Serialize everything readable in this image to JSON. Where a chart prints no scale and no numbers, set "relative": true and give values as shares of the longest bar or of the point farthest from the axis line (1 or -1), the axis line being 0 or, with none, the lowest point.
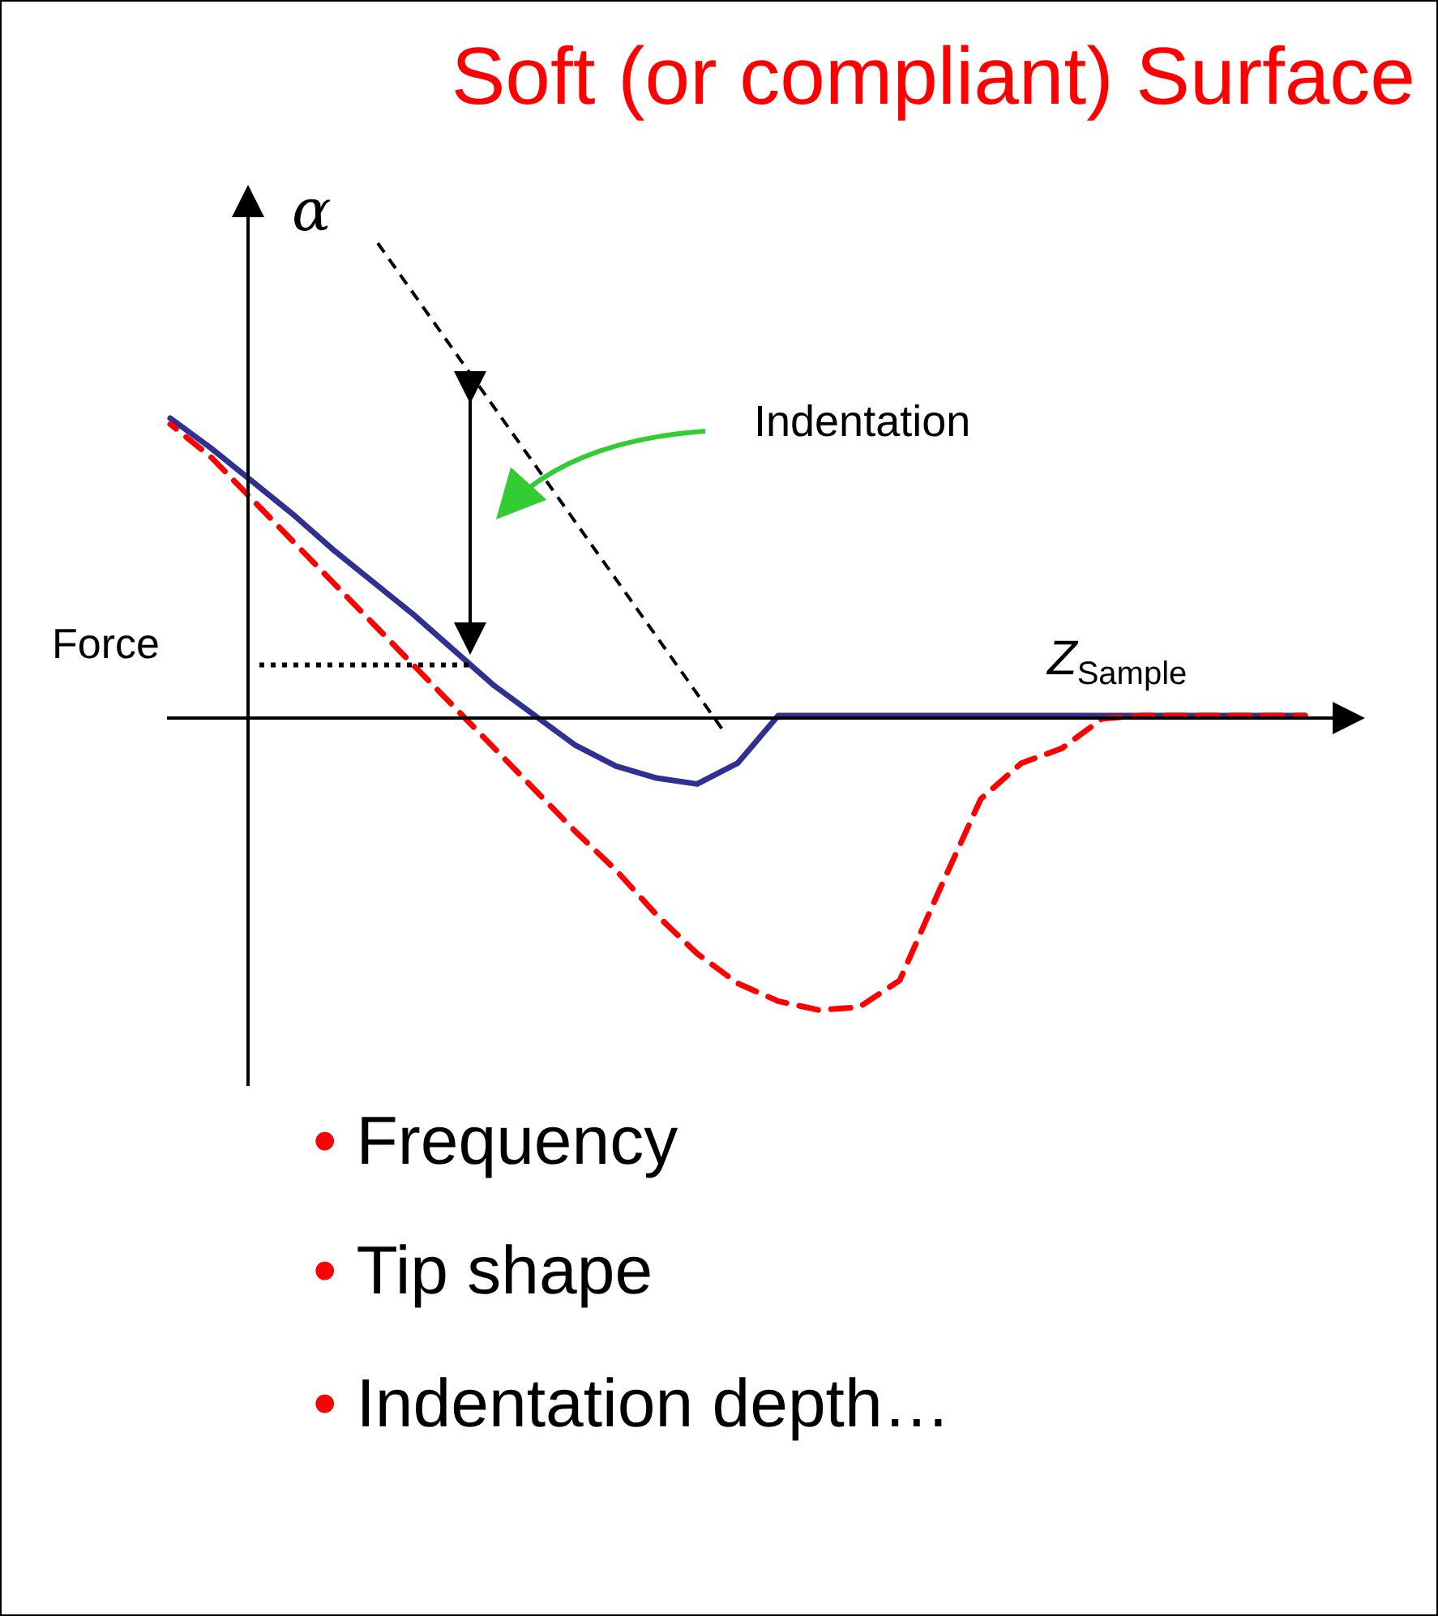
{
  "chart_data": {
    "type": "line",
    "title": "Soft (or compliant) Surface",
    "xlabel": "Z$_{Sample}$",
    "ylabel": "Force",
    "relative": true,
    "marker": "none",
    "legend": false,
    "tick_labels": false,
    "ref_lines": [
      {
        "axis": "y",
        "value": 0.17,
        "color": "#000000",
        "line_style": "dotted"
      }
    ],
    "categories": [
      null,
      null,
      null,
      null,
      null,
      null,
      null,
      null,
      null,
      null,
      null,
      null,
      null,
      null,
      null,
      null,
      null,
      null,
      null,
      null,
      null,
      null,
      null,
      null,
      null,
      null,
      null,
      null,
      null
    ],
    "series": [
      {
        "color": "#2e3192",
        "line_style": "solid",
        "values": [
          1,
          0.9,
          0.79,
          0.68,
          0.56,
          0.45,
          0.34,
          0.22,
          0.1,
          0,
          -0.1,
          -0.17,
          -0.21,
          -0.23,
          -0.16,
          0,
          0,
          0,
          0,
          0,
          0,
          0,
          0,
          0,
          0,
          0,
          0,
          0,
          0
        ]
      },
      {
        "color": "#ff0000",
        "line_style": "dashed",
        "values": [
          0.98,
          0.87,
          0.73,
          0.59,
          0.45,
          0.31,
          0.17,
          0.03,
          -0.11,
          -0.25,
          -0.39,
          -0.52,
          -0.67,
          -0.8,
          -0.9,
          -0.96,
          -0.99,
          -0.98,
          -0.89,
          -0.58,
          -0.28,
          -0.16,
          -0.11,
          -0.01,
          0,
          0,
          0,
          0,
          0
        ]
      }
    ],
    "annotations": [
      "α",
      "Indentation",
      "• Frequency",
      "• Tip shape",
      "• Indentation depth…"
    ]
  }
}
